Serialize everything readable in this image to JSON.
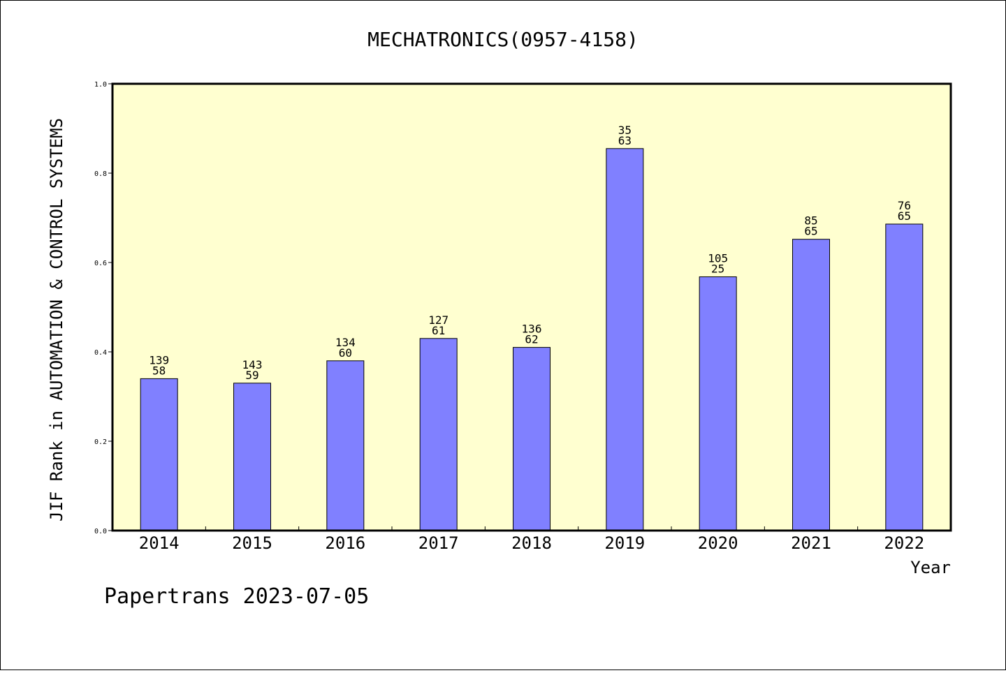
{
  "chart_data": {
    "type": "bar",
    "title": "MECHATRONICS(0957-4158)",
    "xlabel": "Year",
    "ylabel": "JIF Rank in AUTOMATION & CONTROL SYSTEMS",
    "ylim": [
      0,
      1.0
    ],
    "yticks": [
      "0.0",
      "0.2",
      "0.4",
      "0.6",
      "0.8",
      "1.0"
    ],
    "categories": [
      "2014",
      "2015",
      "2016",
      "2017",
      "2018",
      "2019",
      "2020",
      "2021",
      "2022"
    ],
    "values": [
      0.34,
      0.33,
      0.38,
      0.43,
      0.41,
      0.855,
      0.568,
      0.652,
      0.686
    ],
    "labels_top": [
      "139",
      "143",
      "134",
      "127",
      "136",
      "35",
      "105",
      "85",
      "76"
    ],
    "labels_bottom": [
      "58",
      "59",
      "60",
      "61",
      "62",
      "63",
      "25",
      "65",
      "65"
    ],
    "colors": {
      "bar": "#8080ff",
      "plot_background": "#ffffd0"
    },
    "grid": false
  },
  "footer": "Papertrans 2023-07-05"
}
